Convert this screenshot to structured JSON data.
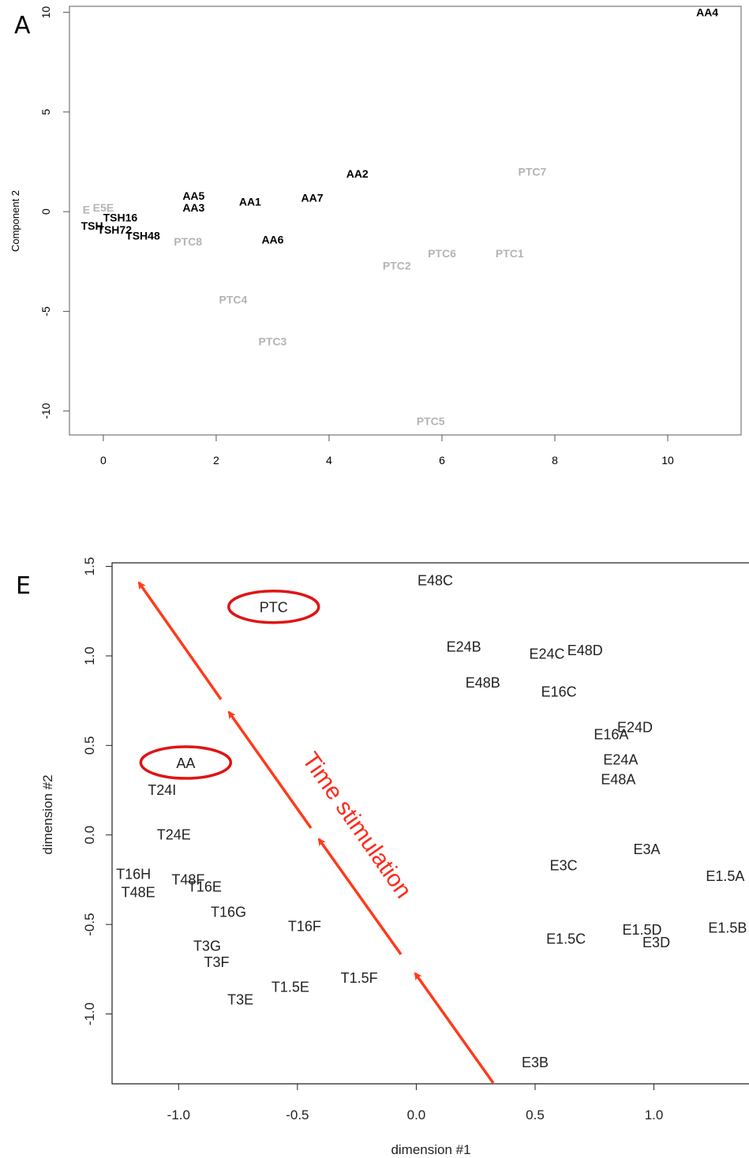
{
  "chart_data": [
    {
      "panel_label": "A",
      "type": "scatter",
      "ylabel": "Component 2",
      "xlim": [
        -0.6,
        11.3
      ],
      "ylim": [
        -11.2,
        10.3
      ],
      "x_ticks": [
        "0",
        "2",
        "4",
        "6",
        "8",
        "10"
      ],
      "y_ticks": [
        "10",
        "5",
        "0",
        "-5",
        "-10"
      ],
      "colors": {
        "AA": "#000000",
        "PTC": "#b4b4b4",
        "TSH": "#000000",
        "E": "#b4b4b4"
      },
      "points": [
        {
          "label": "AA4",
          "x": 10.7,
          "y": 10.0,
          "group": "AA"
        },
        {
          "label": "AA2",
          "x": 4.5,
          "y": 1.9,
          "group": "AA"
        },
        {
          "label": "AA7",
          "x": 3.7,
          "y": 0.7,
          "group": "AA"
        },
        {
          "label": "AA5",
          "x": 1.6,
          "y": 0.8,
          "group": "AA"
        },
        {
          "label": "AA1",
          "x": 2.6,
          "y": 0.5,
          "group": "AA"
        },
        {
          "label": "AA3",
          "x": 1.6,
          "y": 0.2,
          "group": "AA"
        },
        {
          "label": "AA6",
          "x": 3.0,
          "y": -1.4,
          "group": "AA"
        },
        {
          "label": "PTC7",
          "x": 7.6,
          "y": 2.0,
          "group": "PTC"
        },
        {
          "label": "PTC8",
          "x": 1.5,
          "y": -1.5,
          "group": "PTC"
        },
        {
          "label": "PTC6",
          "x": 6.0,
          "y": -2.1,
          "group": "PTC"
        },
        {
          "label": "PTC1",
          "x": 7.2,
          "y": -2.1,
          "group": "PTC"
        },
        {
          "label": "PTC2",
          "x": 5.2,
          "y": -2.7,
          "group": "PTC"
        },
        {
          "label": "PTC4",
          "x": 2.3,
          "y": -4.4,
          "group": "PTC"
        },
        {
          "label": "PTC3",
          "x": 3.0,
          "y": -6.5,
          "group": "PTC"
        },
        {
          "label": "PTC5",
          "x": 5.8,
          "y": -10.5,
          "group": "PTC"
        },
        {
          "label": "TSH16",
          "x": 0.3,
          "y": -0.3,
          "group": "TSH"
        },
        {
          "label": "TSH48",
          "x": 0.7,
          "y": -1.2,
          "group": "TSH"
        },
        {
          "label": "TSH72",
          "x": 0.2,
          "y": -0.9,
          "group": "TSH"
        },
        {
          "label": "TSH",
          "x": -0.2,
          "y": -0.7,
          "group": "TSH"
        },
        {
          "label": "E",
          "x": -0.3,
          "y": 0.1,
          "group": "E"
        },
        {
          "label": "E5E",
          "x": 0.0,
          "y": 0.2,
          "group": "E"
        }
      ]
    },
    {
      "panel_label": "E",
      "type": "scatter",
      "xlabel": "dimension #1",
      "ylabel": "dimension #2",
      "xlim": [
        -1.28,
        1.4
      ],
      "ylim": [
        -1.39,
        1.52
      ],
      "x_ticks": [
        "-1.0",
        "-0.5",
        "0.0",
        "0.5",
        "1.0"
      ],
      "y_ticks": [
        "1.5",
        "1.0",
        "0.5",
        "0.0",
        "-0.5",
        "-1.0"
      ],
      "annotation": "Time stimulation",
      "annotation_color": "#ff2b1c",
      "ellipses": [
        {
          "label": "PTC",
          "x": -0.6,
          "y": 1.27
        },
        {
          "label": "AA",
          "x": -0.97,
          "y": 0.4
        }
      ],
      "points": [
        {
          "label": "E48C",
          "x": 0.08,
          "y": 1.42
        },
        {
          "label": "E24B",
          "x": 0.2,
          "y": 1.05
        },
        {
          "label": "E24C",
          "x": 0.55,
          "y": 1.01
        },
        {
          "label": "E48D",
          "x": 0.71,
          "y": 1.03
        },
        {
          "label": "E48B",
          "x": 0.28,
          "y": 0.85
        },
        {
          "label": "E16C",
          "x": 0.6,
          "y": 0.8
        },
        {
          "label": "E24D",
          "x": 0.92,
          "y": 0.6
        },
        {
          "label": "E16A",
          "x": 0.82,
          "y": 0.56
        },
        {
          "label": "E24A",
          "x": 0.86,
          "y": 0.42
        },
        {
          "label": "E48A",
          "x": 0.85,
          "y": 0.31
        },
        {
          "label": "T24I",
          "x": -1.07,
          "y": 0.25
        },
        {
          "label": "T24E",
          "x": -1.02,
          "y": 0.0
        },
        {
          "label": "E3A",
          "x": 0.97,
          "y": -0.08
        },
        {
          "label": "E3C",
          "x": 0.62,
          "y": -0.17
        },
        {
          "label": "E1.5A",
          "x": 1.3,
          "y": -0.23
        },
        {
          "label": "T16H",
          "x": -1.19,
          "y": -0.22
        },
        {
          "label": "T48F",
          "x": -0.96,
          "y": -0.25
        },
        {
          "label": "T16E",
          "x": -0.89,
          "y": -0.29
        },
        {
          "label": "T48E",
          "x": -1.17,
          "y": -0.32
        },
        {
          "label": "T16G",
          "x": -0.79,
          "y": -0.43
        },
        {
          "label": "T16F",
          "x": -0.47,
          "y": -0.51
        },
        {
          "label": "E1.5B",
          "x": 1.31,
          "y": -0.52
        },
        {
          "label": "E1.5D",
          "x": 0.95,
          "y": -0.53
        },
        {
          "label": "E3D",
          "x": 1.01,
          "y": -0.6
        },
        {
          "label": "E1.5C",
          "x": 0.63,
          "y": -0.58
        },
        {
          "label": "T3G",
          "x": -0.88,
          "y": -0.62
        },
        {
          "label": "T3F",
          "x": -0.84,
          "y": -0.71
        },
        {
          "label": "T1.5F",
          "x": -0.24,
          "y": -0.8
        },
        {
          "label": "T1.5E",
          "x": -0.53,
          "y": -0.85
        },
        {
          "label": "T3E",
          "x": -0.74,
          "y": -0.92
        },
        {
          "label": "E3B",
          "x": 0.5,
          "y": -1.27
        }
      ]
    }
  ]
}
